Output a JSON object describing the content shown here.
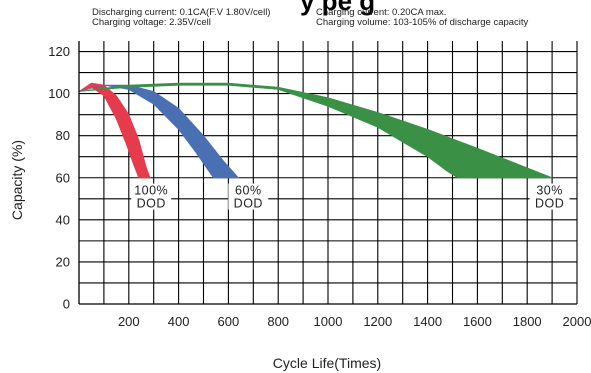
{
  "notes": {
    "left_line1": "Discharging current: 0.1CA(F.V 1.80V/cell)",
    "left_line2": "Charging voltage: 2.35V/cell",
    "right_line1": "Charging current: 0.20CA max.",
    "right_line2": "Charging volume: 103-105% of discharge capacity"
  },
  "chart_data": {
    "type": "area",
    "title": "",
    "xlabel": "Cycle Life(Times)",
    "ylabel": "Capacity (%)",
    "xlim": [
      0,
      2000
    ],
    "ylim": [
      0,
      125
    ],
    "xticks": [
      200,
      400,
      600,
      800,
      1000,
      1200,
      1400,
      1600,
      1800,
      2000
    ],
    "yticks": [
      0,
      20,
      40,
      60,
      80,
      100,
      120
    ],
    "grid": true,
    "colors": {
      "100_dod": "#e63a4d",
      "60_dod": "#4a6fb3",
      "30_dod": "#3a9146"
    },
    "series": [
      {
        "dod_label": [
          "100%",
          "DOD"
        ],
        "color": "#e63a4d",
        "upper": [
          [
            0,
            101
          ],
          [
            50,
            105
          ],
          [
            100,
            104
          ],
          [
            150,
            99
          ],
          [
            200,
            90
          ],
          [
            240,
            78
          ],
          [
            270,
            65
          ],
          [
            285,
            60
          ]
        ],
        "lower": [
          [
            0,
            101
          ],
          [
            50,
            103
          ],
          [
            100,
            99
          ],
          [
            150,
            88
          ],
          [
            190,
            76
          ],
          [
            220,
            66
          ],
          [
            240,
            60
          ]
        ]
      },
      {
        "dod_label": [
          "60%",
          "DOD"
        ],
        "color": "#4a6fb3",
        "upper": [
          [
            0,
            101
          ],
          [
            100,
            104
          ],
          [
            200,
            104
          ],
          [
            300,
            101
          ],
          [
            400,
            93
          ],
          [
            500,
            80
          ],
          [
            580,
            68
          ],
          [
            640,
            60
          ]
        ],
        "lower": [
          [
            0,
            101
          ],
          [
            100,
            104
          ],
          [
            200,
            102
          ],
          [
            300,
            95
          ],
          [
            400,
            83
          ],
          [
            470,
            72
          ],
          [
            510,
            65
          ],
          [
            540,
            60
          ]
        ]
      },
      {
        "dod_label": [
          "30%",
          "DOD"
        ],
        "color": "#3a9146",
        "upper": [
          [
            0,
            101
          ],
          [
            200,
            104
          ],
          [
            400,
            105
          ],
          [
            600,
            105
          ],
          [
            800,
            103
          ],
          [
            1000,
            98
          ],
          [
            1200,
            91
          ],
          [
            1400,
            83
          ],
          [
            1600,
            74
          ],
          [
            1750,
            67
          ],
          [
            1900,
            60
          ]
        ],
        "lower": [
          [
            0,
            101
          ],
          [
            200,
            103
          ],
          [
            400,
            104
          ],
          [
            600,
            104
          ],
          [
            800,
            102
          ],
          [
            1000,
            94
          ],
          [
            1200,
            84
          ],
          [
            1300,
            77
          ],
          [
            1400,
            70
          ],
          [
            1480,
            63
          ],
          [
            1520,
            60
          ]
        ]
      }
    ]
  },
  "cut_title": "y                 pe          g"
}
